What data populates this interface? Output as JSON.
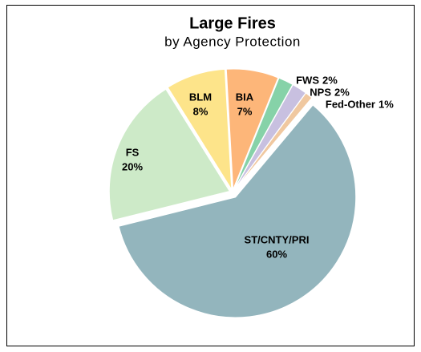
{
  "chart_data": {
    "type": "pie",
    "title": "Large Fires",
    "subtitle": "by Agency Protection",
    "categories": [
      "ST/CNTY/PRI",
      "FS",
      "BLM",
      "BIA",
      "FWS",
      "NPS",
      "Fed-Other"
    ],
    "values": [
      60,
      20,
      8,
      7,
      2,
      2,
      1
    ],
    "value_labels": [
      "60%",
      "20%",
      "8%",
      "7%",
      "2%",
      "2%",
      "1%"
    ],
    "colors": [
      "#93b5bd",
      "#cdeac8",
      "#fde48a",
      "#fdb679",
      "#86d2a8",
      "#c8c0e0",
      "#f0c8a0"
    ]
  }
}
